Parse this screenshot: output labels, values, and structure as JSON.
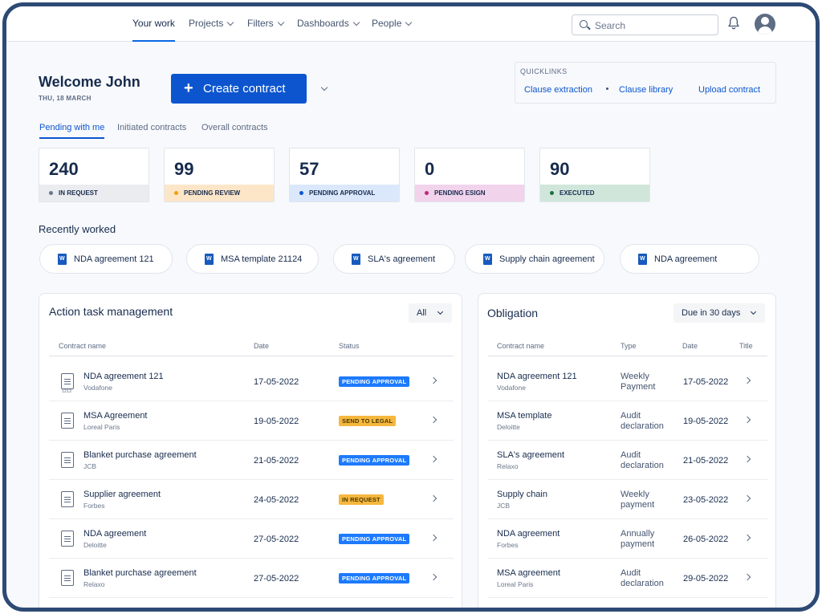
{
  "nav": {
    "items": [
      {
        "label": "Your work"
      },
      {
        "label": "Projects"
      },
      {
        "label": "Filters"
      },
      {
        "label": "Dashboards"
      },
      {
        "label": "People"
      }
    ],
    "search_placeholder": "Search"
  },
  "header": {
    "welcome": "Welcome John",
    "date": "THU, 18 MARCH",
    "create_button": "Create contract"
  },
  "quicklinks": {
    "title": "QUICKLINKS",
    "links": [
      "Clause extraction",
      "Clause library",
      "Upload contract"
    ]
  },
  "tabs": [
    "Pending with me",
    "Initiated contracts",
    "Overall contracts"
  ],
  "stats": [
    {
      "value": "240",
      "label": "IN REQUEST",
      "bg": "#ebecf0",
      "dot": "#6b778c"
    },
    {
      "value": "99",
      "label": "PENDING REVIEW",
      "bg": "#fde6c8",
      "dot": "#f59e0b"
    },
    {
      "value": "57",
      "label": "PENDING APPROVAL",
      "bg": "#dbe8fb",
      "dot": "#0c55cf"
    },
    {
      "value": "0",
      "label": "PENDING ESIGN",
      "bg": "#f2d3ec",
      "dot": "#c2267a"
    },
    {
      "value": "90",
      "label": "EXECUTED",
      "bg": "#d0e6da",
      "dot": "#1f6f43"
    }
  ],
  "recent": {
    "title": "Recently worked",
    "items": [
      "NDA agreement 121",
      "MSA template 21124",
      "SLA's agreement",
      "Supply chain agreement",
      "NDA agreement"
    ]
  },
  "action": {
    "title": "Action task management",
    "filter": "All",
    "columns": [
      "Contract name",
      "Date",
      "Status"
    ],
    "rows": [
      {
        "name": "NDA agreement 121",
        "sub": "Vodafone",
        "date": "17-05-2022",
        "status": "PENDING APPROVAL",
        "icon_note": "1212"
      },
      {
        "name": "MSA Agreement",
        "sub": "Loreal Paris",
        "date": "19-05-2022",
        "status": "SEND TO LEGAL"
      },
      {
        "name": "Blanket purchase agreement",
        "sub": "JCB",
        "date": "21-05-2022",
        "status": "PENDING APPROVAL"
      },
      {
        "name": "Supplier agreement",
        "sub": "Forbes",
        "date": "24-05-2022",
        "status": "IN REQUEST"
      },
      {
        "name": "NDA agreement",
        "sub": "Deloitte",
        "date": "27-05-2022",
        "status": "PENDING APPROVAL"
      },
      {
        "name": "Blanket purchase agreement",
        "sub": "Relaxo",
        "date": "27-05-2022",
        "status": "PENDING APPROVAL"
      }
    ]
  },
  "obligation": {
    "title": "Obligation",
    "filter": "Due in 30 days",
    "columns": [
      "Contract name",
      "Type",
      "Date",
      "Title"
    ],
    "rows": [
      {
        "name": "NDA agreement 121",
        "sub": "Vodafone",
        "type": "Weekly Payment",
        "date": "17-05-2022"
      },
      {
        "name": "MSA template",
        "sub": "Deloitte",
        "type": "Audit declaration",
        "date": "19-05-2022"
      },
      {
        "name": "SLA's agreement",
        "sub": "Relaxo",
        "type": "Audit declaration",
        "date": "21-05-2022"
      },
      {
        "name": "Supply chain",
        "sub": "JCB",
        "type": "Weekly payment",
        "date": "23-05-2022"
      },
      {
        "name": "NDA agreement",
        "sub": "Forbes",
        "type": "Annually payment",
        "date": "26-05-2022"
      },
      {
        "name": "MSA agreement",
        "sub": "Loreal Paris",
        "type": "Audit declaration",
        "date": "29-05-2022"
      }
    ]
  }
}
